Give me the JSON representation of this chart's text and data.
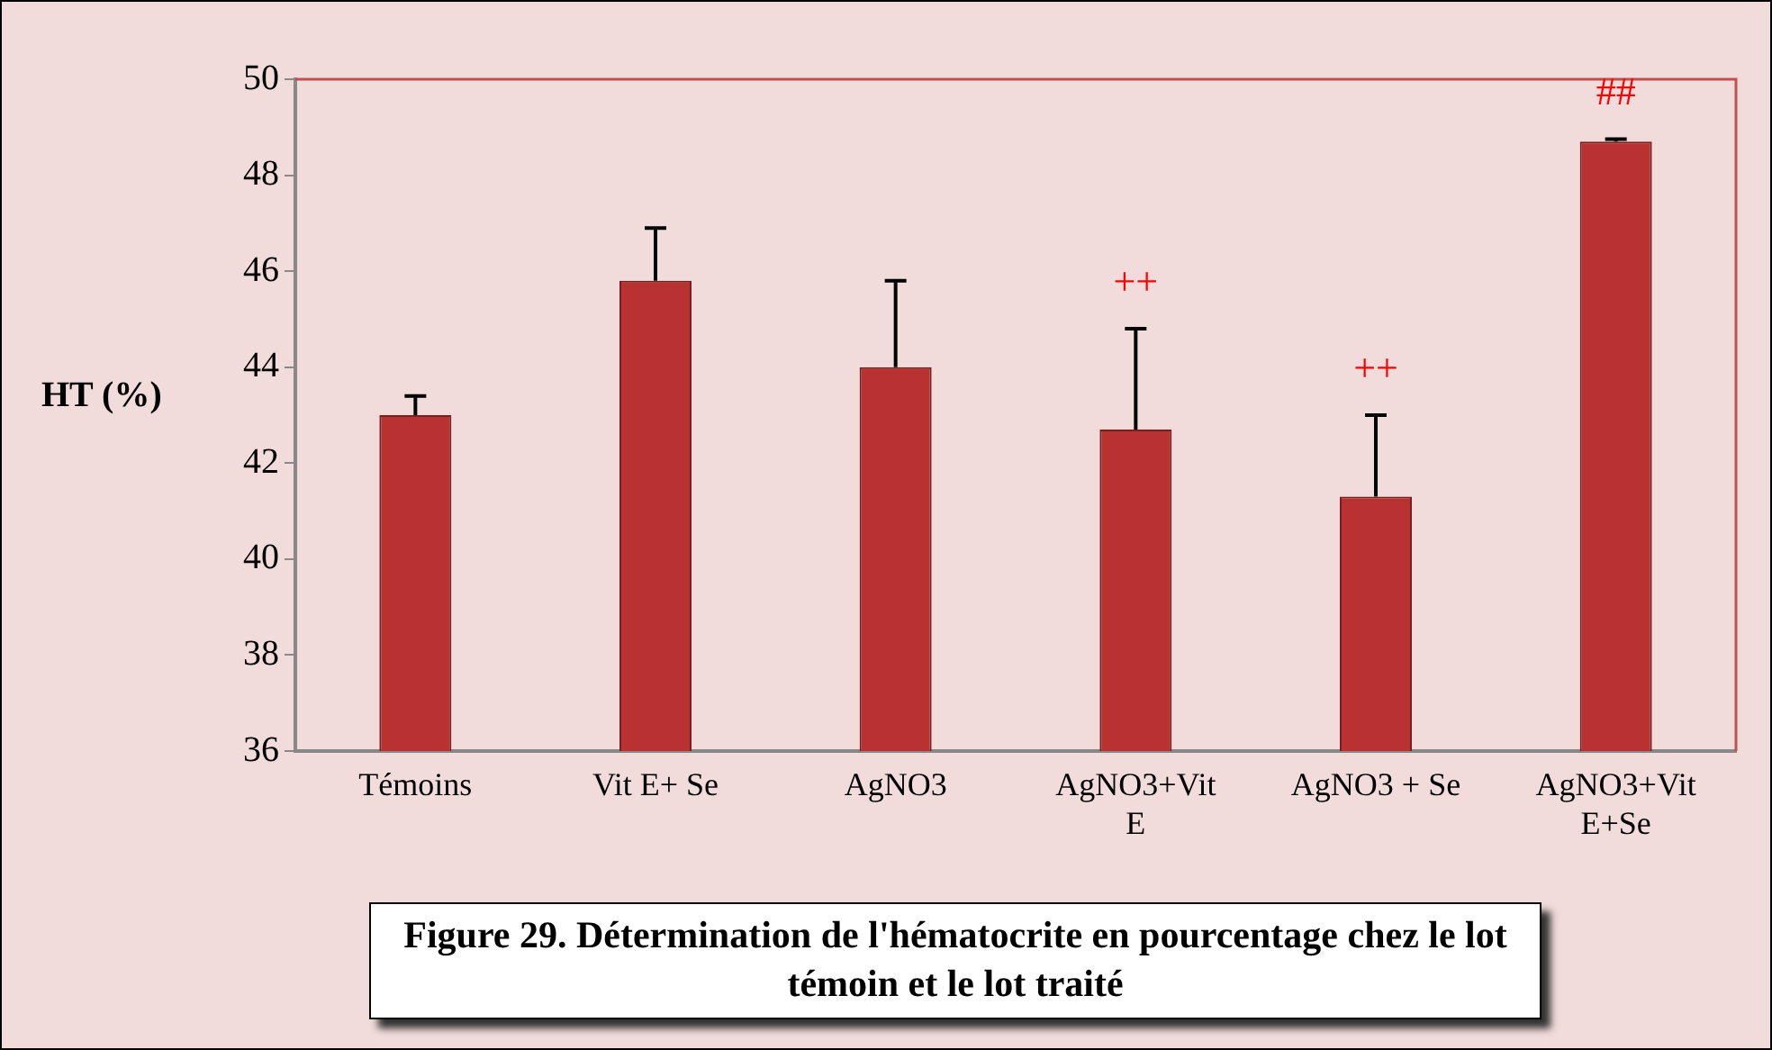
{
  "chart_data": {
    "type": "bar",
    "ylabel": "HT (%)",
    "categories": [
      "Témoins",
      "Vit E+ Se",
      "AgNO3",
      "AgNO3+Vit E",
      "AgNO3 + Se",
      "AgNO3+Vit E+Se"
    ],
    "values": [
      43.0,
      45.8,
      44.0,
      42.7,
      41.3,
      48.7
    ],
    "errors": [
      [
        43.0,
        43.4
      ],
      [
        45.8,
        46.9
      ],
      [
        44.0,
        45.8
      ],
      [
        42.7,
        44.8
      ],
      [
        41.3,
        43.0
      ],
      [
        48.7,
        48.75
      ]
    ],
    "color": "#b83232",
    "ylim": [
      36,
      50
    ],
    "yticks": [
      36,
      38,
      40,
      42,
      44,
      46,
      48,
      50
    ],
    "grid": false,
    "legend": false,
    "annotations": [
      {
        "text": "++",
        "x": "AgNO3+Vit E",
        "y": 44.8
      },
      {
        "text": "++",
        "x": "AgNO3 + Se",
        "y": 43.0
      },
      {
        "text": "##",
        "x": "AgNO3+Vit E+Se",
        "y": 48.75
      },
      "Figure 29. Détermination de l'hématocrite en pourcentage chez le lot témoin et le lot traité"
    ]
  }
}
